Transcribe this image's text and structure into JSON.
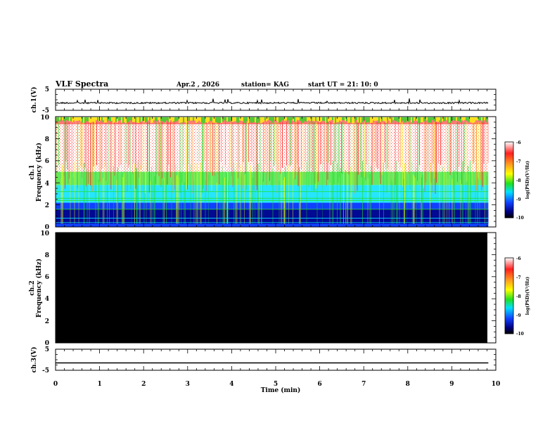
{
  "header": {
    "title": "VLF Spectra",
    "date": "Apr.2 , 2026",
    "station": "station= KAG",
    "start": "start UT = 21: 10: 0"
  },
  "chart_data": [
    {
      "type": "line",
      "panel": "ch1-waveform",
      "ylabel": "ch.1(V)",
      "ylim": [
        -5,
        5
      ],
      "ytick_labels": [
        "5",
        "-5"
      ],
      "xlim": [
        0,
        9.83
      ],
      "baseline_value": -1.5
    },
    {
      "type": "heatmap",
      "panel": "ch1-spectrogram",
      "ylabel_top": "ch.1",
      "ylabel": "Frequency (kHz)",
      "ylim": [
        0,
        10
      ],
      "ytick_labels": [
        "0",
        "2",
        "4",
        "6",
        "8",
        "10"
      ],
      "xlim": [
        0,
        9.83
      ],
      "colorbar": {
        "label": "log(PSD)(V²/Hz)",
        "ticks": [
          "-6",
          "-7",
          "-8",
          "-9",
          "-10"
        ],
        "range": [
          -10,
          -6
        ]
      }
    },
    {
      "type": "heatmap",
      "panel": "ch2-spectrogram",
      "ylabel_top": "ch.2",
      "ylabel": "Frequency (kHz)",
      "ylim": [
        0,
        10
      ],
      "ytick_labels": [
        "0",
        "2",
        "4",
        "6",
        "8",
        "10"
      ],
      "xlim": [
        0,
        9.83
      ],
      "fill": "no-data",
      "colorbar": {
        "label": "log(PSD)(V²/Hz)",
        "ticks": [
          "-6",
          "-7",
          "-8",
          "-9",
          "-10"
        ],
        "range": [
          -10,
          -6
        ]
      }
    },
    {
      "type": "line",
      "panel": "ch3-waveform",
      "ylabel": "ch.3(V)",
      "ylim": [
        -5,
        5
      ],
      "ytick_labels": [
        "5",
        "-5"
      ],
      "xlim": [
        0,
        9.83
      ],
      "baseline_value": -1.5
    }
  ],
  "xaxis": {
    "label": "Time (min)",
    "range": [
      0,
      10
    ],
    "tick_labels": [
      "0",
      "1",
      "2",
      "3",
      "4",
      "5",
      "6",
      "7",
      "8",
      "9",
      "10"
    ]
  },
  "colors": {
    "ch2_fill": "#000000",
    "colormap": [
      "#ffffff",
      "#ff2020",
      "#ffa020",
      "#ffff00",
      "#20e020",
      "#00e0ff",
      "#1040ff",
      "#000080",
      "#000000"
    ]
  }
}
